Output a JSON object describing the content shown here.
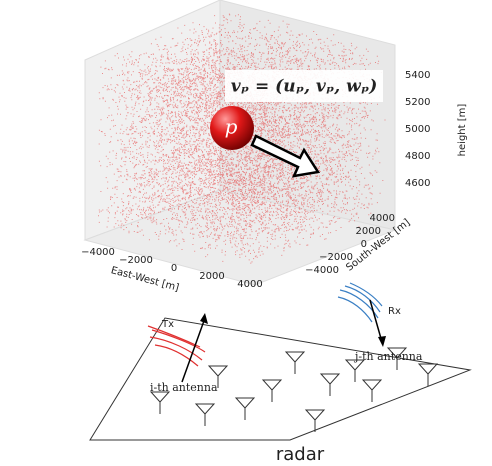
{
  "plot": {
    "velocity_label": "vₚ = (uₚ, vₚ, wₚ)",
    "particle_label": "p",
    "height_axis": {
      "label": "height [m]",
      "ticks": [
        "5400",
        "5200",
        "5000",
        "4800",
        "4600"
      ]
    },
    "east_west_axis": {
      "label": "East-West [m]",
      "ticks": [
        "−4000",
        "−2000",
        "0",
        "2000",
        "4000"
      ]
    },
    "south_west_axis": {
      "label": "South-West [m]",
      "ticks": [
        "4000",
        "2000",
        "0",
        "−2000",
        "−4000"
      ]
    }
  },
  "radar": {
    "tx_label": "Tx",
    "rx_label": "Rx",
    "tx_antenna": "i-th antenna",
    "rx_antenna": "j-th antenna",
    "title": "radar"
  }
}
